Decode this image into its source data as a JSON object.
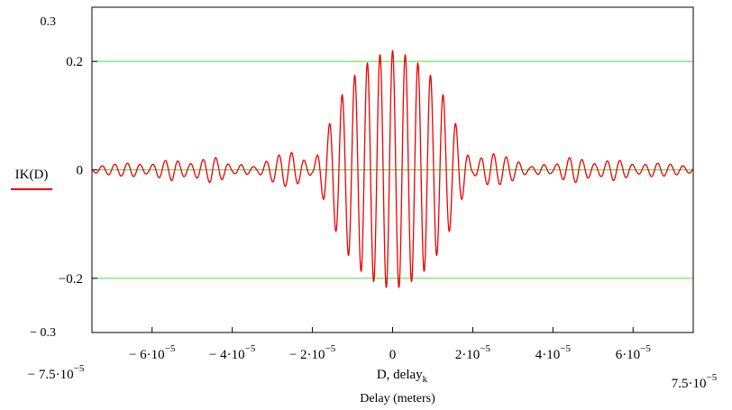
{
  "chart_data": {
    "type": "line",
    "xlabel_expr": "D, delay",
    "xlabel_sub": "k",
    "xlabel": "Delay (meters)",
    "legend": "IK(D)",
    "xlim": [
      -7.5e-05,
      7.5e-05
    ],
    "ylim": [
      -0.3,
      0.3
    ],
    "x_range_labels": {
      "left": {
        "minus": "−",
        "mant": "7.5",
        "base": "10",
        "exp": "−5"
      },
      "right": {
        "minus": "",
        "mant": "7.5",
        "base": "10",
        "exp": "−5"
      }
    },
    "x_ticks": [
      {
        "value": -6e-05,
        "minus": "−",
        "mant": "6",
        "base": "10",
        "exp": "−5"
      },
      {
        "value": -4e-05,
        "minus": "−",
        "mant": "4",
        "base": "10",
        "exp": "−5"
      },
      {
        "value": -2e-05,
        "minus": "−",
        "mant": "2",
        "base": "10",
        "exp": "−5"
      },
      {
        "value": 0,
        "minus": "",
        "mant": "0",
        "base": "",
        "exp": ""
      },
      {
        "value": 2e-05,
        "minus": "",
        "mant": "2",
        "base": "10",
        "exp": "−5"
      },
      {
        "value": 4e-05,
        "minus": "",
        "mant": "4",
        "base": "10",
        "exp": "−5"
      },
      {
        "value": 6e-05,
        "minus": "",
        "mant": "6",
        "base": "10",
        "exp": "−5"
      }
    ],
    "y_ticks": [
      {
        "value": 0.2,
        "label": "0.2"
      },
      {
        "value": 0,
        "label": "0"
      },
      {
        "value": -0.2,
        "label": "−0.2"
      }
    ],
    "y_range_labels": {
      "top": "0.3",
      "bottom": "− 0.3"
    },
    "gridlines_y": [
      0.2,
      0,
      -0.2
    ],
    "colors": {
      "series": "#ee0000",
      "grid": "#44dd44",
      "axis": "#000000"
    },
    "series": [
      {
        "color": "#ee0000",
        "oscillation_period": 3.15e-06,
        "envelope": {
          "x": [
            -7.5e-05,
            -7e-05,
            -6.5e-05,
            -6.1e-05,
            -5.8e-05,
            -5.5e-05,
            -5.1e-05,
            -4.8e-05,
            -4.5e-05,
            -4.25e-05,
            -4e-05,
            -3.75e-05,
            -3.4e-05,
            -3e-05,
            -2.75e-05,
            -2.5e-05,
            -2.25e-05,
            -2e-05,
            -1.75e-05,
            -1.5e-05,
            -1.25e-05,
            -1e-05,
            -7.5e-06,
            -5e-06,
            -2.5e-06,
            0,
            2.5e-06,
            5e-06,
            7.5e-06,
            1e-05,
            1.25e-05,
            1.5e-05,
            1.75e-05,
            2e-05,
            2.25e-05,
            2.5e-05,
            2.75e-05,
            3e-05,
            3.4e-05,
            3.75e-05,
            4e-05,
            4.25e-05,
            4.5e-05,
            4.8e-05,
            5.1e-05,
            5.5e-05,
            5.8e-05,
            6.1e-05,
            6.5e-05,
            7e-05,
            7.5e-05
          ],
          "y": [
            0.005,
            0.01,
            0.013,
            0.007,
            0.015,
            0.02,
            0.01,
            0.017,
            0.025,
            0.018,
            0.006,
            0.01,
            0.005,
            0.022,
            0.03,
            0.032,
            0.02,
            0.007,
            0.05,
            0.1,
            0.14,
            0.17,
            0.19,
            0.205,
            0.215,
            0.22,
            0.215,
            0.205,
            0.19,
            0.17,
            0.14,
            0.1,
            0.05,
            0.007,
            0.025,
            0.03,
            0.026,
            0.02,
            0.005,
            0.01,
            0.006,
            0.018,
            0.025,
            0.017,
            0.01,
            0.02,
            0.015,
            0.007,
            0.013,
            0.01,
            0.005
          ]
        }
      }
    ]
  }
}
